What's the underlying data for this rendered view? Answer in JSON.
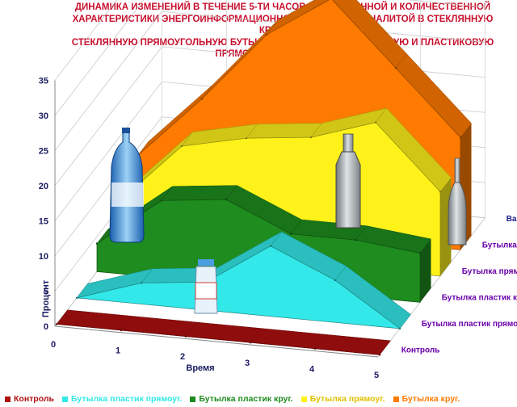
{
  "title_lines": [
    "ДИНАМИКА ИЗМЕНЕНИЙ В ТЕЧЕНИЕ 5-ТИ ЧАСОВ,  КАЧЕСТВЕННОЙ И КОЛИЧЕСТВЕННОЙ",
    "ХАРАКТЕРИСТИКИ  ЭНЕРГОИНФОРМАЦИОННОГО ПОЛЯ ВОДЫ, НАЛИТОЙ В СТЕКЛЯННУЮ КРУГЛУЮ,",
    "СТЕКЛЯННУЮ ПРЯМОУГОЛЬНУЮ БУТЫЛКУ, В КРУГЛУЮ ПЛАСТИКОВУЮ И ПЛАСТИКОВУЮ",
    "ПРЯМОУГОЛЬНУЮ БУТЫЛКУ"
  ],
  "chart_data": {
    "type": "area",
    "subtype": "3d-area",
    "x": [
      0,
      1,
      2,
      3,
      4,
      5
    ],
    "xlabel": "Время",
    "ylabel": "Процент",
    "ylim": [
      0,
      35
    ],
    "y_ticks": [
      0,
      5,
      10,
      15,
      20,
      25,
      30,
      35
    ],
    "depth_axis_title": "Варианты",
    "grid": true,
    "legend_position": "bottom",
    "series": [
      {
        "name": "Контроль",
        "color": "#b01010",
        "values": [
          0,
          0,
          0,
          0,
          0,
          0
        ]
      },
      {
        "name": "Бутылка пластик прямоуг.",
        "color": "#33e8e8",
        "values": [
          0,
          3,
          4,
          10,
          6,
          0
        ]
      },
      {
        "name": "Бутылка пластик круг.",
        "color": "#1e8c1e",
        "values": [
          4,
          11,
          12,
          8,
          8,
          7
        ]
      },
      {
        "name": "Бутылка прямоуг.",
        "color": "#fff21a",
        "values": [
          6,
          15,
          17,
          18,
          21,
          12
        ]
      },
      {
        "name": "Бутылка круг.",
        "color": "#ff7a00",
        "values": [
          9,
          18,
          28,
          34,
          25,
          16
        ]
      }
    ]
  }
}
